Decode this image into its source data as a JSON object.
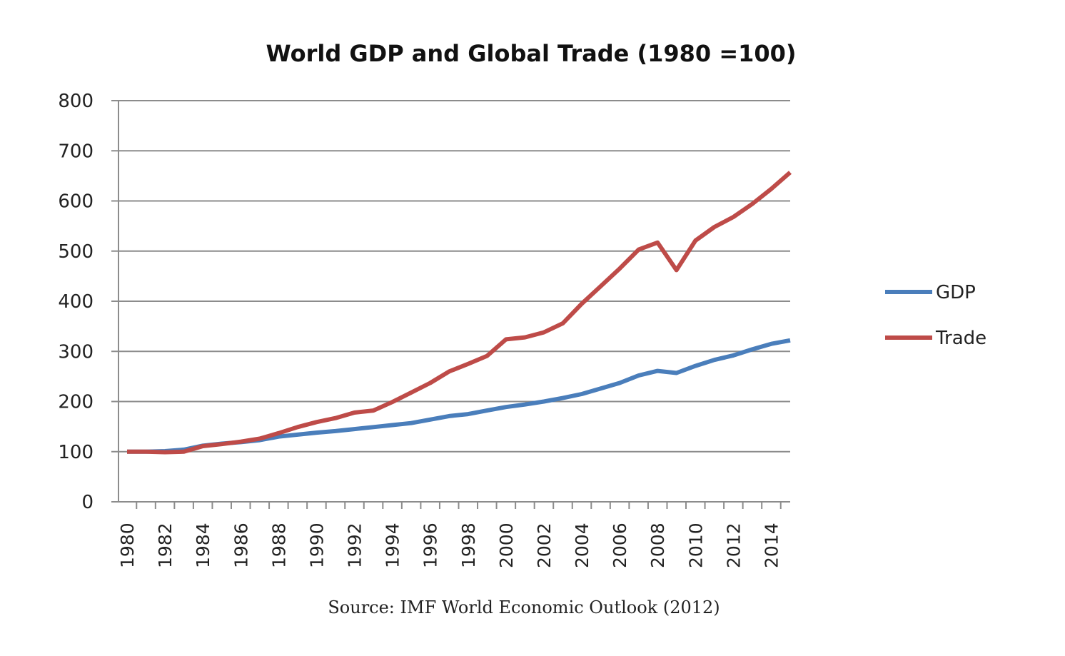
{
  "chart_data": {
    "type": "line",
    "title": "World GDP and Global Trade (1980 =100)",
    "source": "Source:  IMF World Economic Outlook (2012)",
    "xlabel": "",
    "ylabel": "",
    "ylim": [
      0,
      800
    ],
    "yticks": [
      "0",
      "100",
      "200",
      "300",
      "400",
      "500",
      "600",
      "700",
      "800"
    ],
    "x": [
      1980,
      1981,
      1982,
      1983,
      1984,
      1985,
      1986,
      1987,
      1988,
      1989,
      1990,
      1991,
      1992,
      1993,
      1994,
      1995,
      1996,
      1997,
      1998,
      1999,
      2000,
      2001,
      2002,
      2003,
      2004,
      2005,
      2006,
      2007,
      2008,
      2009,
      2010,
      2011,
      2012,
      2013,
      2014,
      2015
    ],
    "xtick_labels": [
      "1980",
      "1982",
      "1984",
      "1986",
      "1988",
      "1990",
      "1992",
      "1994",
      "1996",
      "1998",
      "2000",
      "2002",
      "2004",
      "2006",
      "2008",
      "2010",
      "2012",
      "2014"
    ],
    "grid": true,
    "legend_position": "right",
    "series": [
      {
        "name": "GDP",
        "color": "#4a7ebb",
        "values": [
          100,
          100,
          101,
          104,
          112,
          116,
          119,
          123,
          130,
          134,
          138,
          141,
          145,
          149,
          153,
          157,
          164,
          171,
          175,
          182,
          189,
          194,
          200,
          207,
          215,
          226,
          237,
          252,
          261,
          257,
          271,
          283,
          292,
          304,
          315,
          322
        ]
      },
      {
        "name": "Trade",
        "color": "#be4b48",
        "values": [
          100,
          100,
          99,
          100,
          111,
          115,
          120,
          126,
          137,
          149,
          159,
          167,
          178,
          182,
          199,
          218,
          237,
          260,
          275,
          291,
          324,
          328,
          338,
          356,
          395,
          430,
          465,
          503,
          517,
          462,
          521,
          548,
          568,
          594,
          624,
          657
        ]
      }
    ]
  }
}
